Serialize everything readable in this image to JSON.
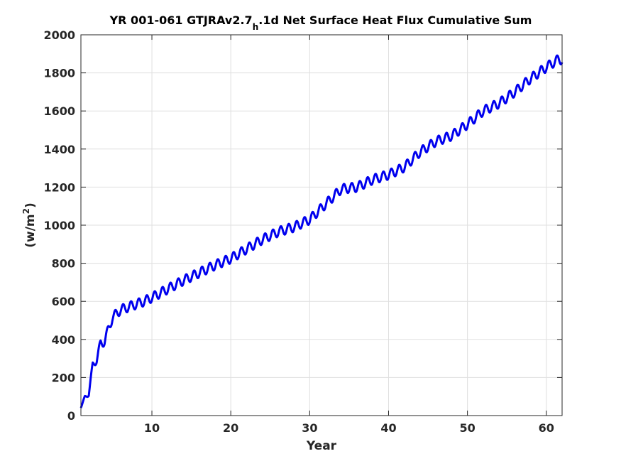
{
  "chart_data": {
    "type": "line",
    "title_main": "YR 001-061 GTJRAv2.7",
    "title_sub": "h",
    "title_rest": ".1d Net Surface Heat Flux  Cumulative Sum",
    "xlabel": "Year",
    "ylabel_main": "(w/m",
    "ylabel_sup": "2",
    "ylabel_close": ")",
    "xlim": [
      1,
      62
    ],
    "ylim": [
      0,
      2000
    ],
    "xticks": [
      "10",
      "20",
      "30",
      "40",
      "50",
      "60"
    ],
    "xtick_values": [
      10,
      20,
      30,
      40,
      50,
      60
    ],
    "yticks": [
      "0",
      "200",
      "400",
      "600",
      "800",
      "1000",
      "1200",
      "1400",
      "1600",
      "1800",
      "2000"
    ],
    "ytick_values": [
      0,
      200,
      400,
      600,
      800,
      1000,
      1200,
      1400,
      1600,
      1800,
      2000
    ],
    "grid": true,
    "line_color": "#0000ee",
    "seasonal_amplitude": 25,
    "series": [
      {
        "x": [
          1,
          1.5,
          2,
          2.5,
          3,
          3.5,
          4,
          4.5,
          5,
          6,
          7,
          8,
          9,
          10,
          12,
          14,
          16,
          18,
          20,
          22,
          24,
          26,
          28,
          30,
          32,
          34,
          36,
          38,
          40,
          42,
          44,
          46,
          48,
          50,
          52,
          54,
          56,
          58,
          60,
          61.5
        ],
        "values": [
          40,
          100,
          110,
          270,
          290,
          380,
          390,
          455,
          515,
          555,
          570,
          585,
          600,
          620,
          665,
          710,
          750,
          790,
          825,
          875,
          925,
          965,
          990,
          1030,
          1110,
          1190,
          1200,
          1240,
          1265,
          1305,
          1385,
          1440,
          1470,
          1530,
          1600,
          1640,
          1700,
          1770,
          1830,
          1870
        ]
      }
    ]
  }
}
